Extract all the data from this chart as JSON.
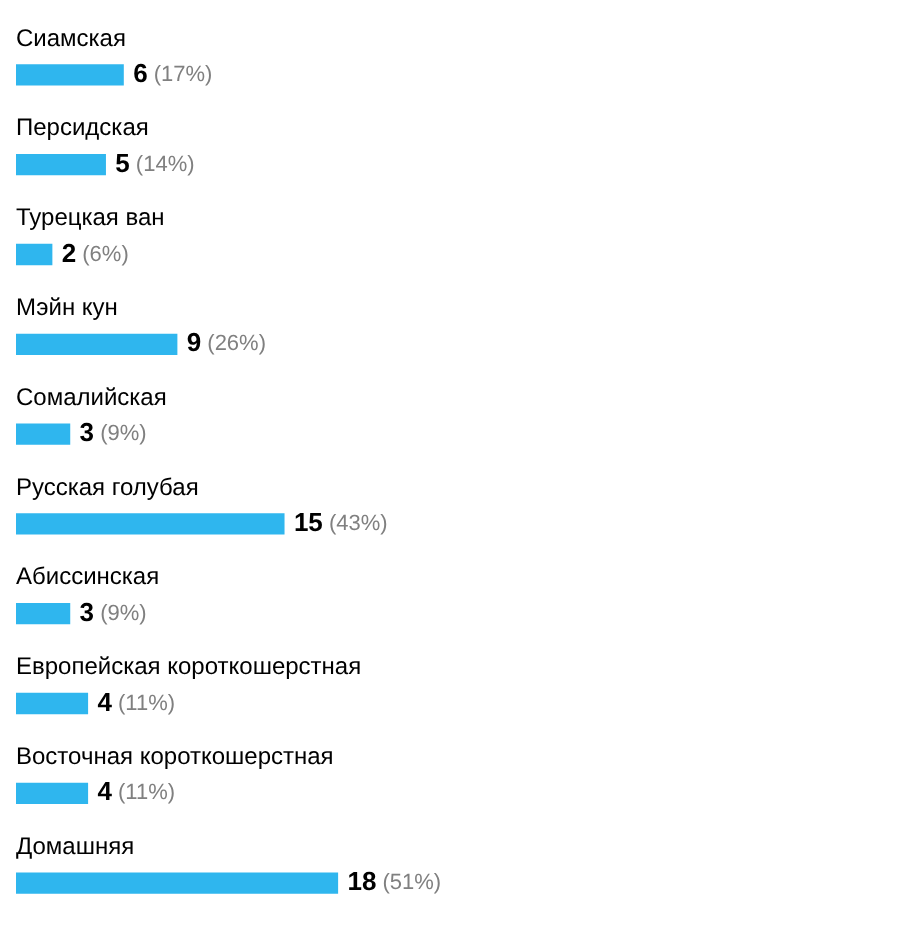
{
  "chart_data": {
    "type": "bar",
    "orientation": "horizontal",
    "categories": [
      "Сиамская",
      "Персидская",
      "Турецкая ван",
      "Мэйн кун",
      "Сомалийская",
      "Русская голубая",
      "Абиссинская",
      "Европейская короткошерстная",
      "Восточная короткошерстная",
      "Домашняя"
    ],
    "values": [
      6,
      5,
      2,
      9,
      3,
      15,
      3,
      4,
      4,
      18
    ],
    "value_labels": [
      "6 (17%)",
      "5 (14%)",
      "2 (6%)",
      "9 (26%)",
      "3 (9%)",
      "15 (43%)",
      "3 (9%)",
      "4 (11%)",
      "4 (11%)",
      "18 (51%)"
    ],
    "color": "#2fb6ee",
    "legend": false,
    "tick_labels": false
  }
}
